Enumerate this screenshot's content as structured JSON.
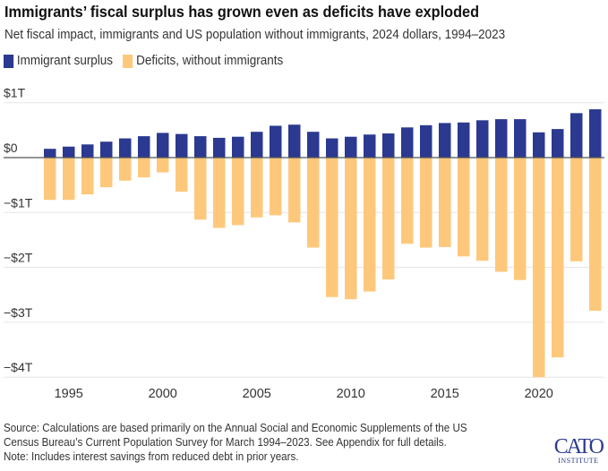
{
  "chart_data": {
    "type": "bar",
    "title": "Immigrants’ fiscal surplus has grown even as deficits have exploded",
    "subtitle": "Net fiscal impact, immigrants and US population without immigrants, 2024 dollars, 1994–2023",
    "xlabel": "",
    "ylabel": "",
    "ylim": [
      -4,
      1
    ],
    "yticks": [
      1,
      0,
      -1,
      -2,
      -3,
      -4
    ],
    "ytick_labels": [
      "$1T",
      "$0",
      "−$1T",
      "−$2T",
      "−$3T",
      "−$4T"
    ],
    "xticks": [
      1995,
      2000,
      2005,
      2010,
      2015,
      2020
    ],
    "xtick_labels": [
      "1995",
      "2000",
      "2005",
      "2010",
      "2015",
      "2020"
    ],
    "grid": true,
    "legend_placement": "top-left",
    "categories": [
      1994,
      1995,
      1996,
      1997,
      1998,
      1999,
      2000,
      2001,
      2002,
      2003,
      2004,
      2005,
      2006,
      2007,
      2008,
      2009,
      2010,
      2011,
      2012,
      2013,
      2014,
      2015,
      2016,
      2017,
      2018,
      2019,
      2020,
      2021,
      2022,
      2023
    ],
    "series": [
      {
        "name": "Immigrant surplus",
        "color": "#2b3990",
        "values": [
          0.16,
          0.2,
          0.24,
          0.29,
          0.35,
          0.39,
          0.45,
          0.43,
          0.39,
          0.36,
          0.38,
          0.47,
          0.58,
          0.6,
          0.47,
          0.35,
          0.38,
          0.42,
          0.44,
          0.55,
          0.59,
          0.63,
          0.64,
          0.68,
          0.7,
          0.7,
          0.46,
          0.52,
          0.81,
          0.88
        ]
      },
      {
        "name": "Deficits, without immigrants",
        "color": "#fec87c",
        "values": [
          -0.77,
          -0.77,
          -0.67,
          -0.54,
          -0.42,
          -0.36,
          -0.27,
          -0.62,
          -1.13,
          -1.28,
          -1.23,
          -1.09,
          -1.05,
          -1.18,
          -1.64,
          -2.54,
          -2.58,
          -2.44,
          -2.22,
          -1.57,
          -1.64,
          -1.63,
          -1.8,
          -1.88,
          -2.08,
          -2.23,
          -4.0,
          -3.64,
          -1.89,
          -2.79
        ]
      }
    ]
  },
  "footer": {
    "source_line1": "Source: Calculations are based primarily on the Annual Social and Economic Supplements of the US",
    "source_line2": "Census Bureau’s Current Population Survey for March 1994–2023. See Appendix for full details.",
    "note": "Note: Includes interest savings from reduced debt in prior years."
  },
  "logo": {
    "line1": "CATO",
    "line2": "INSTITUTE"
  }
}
